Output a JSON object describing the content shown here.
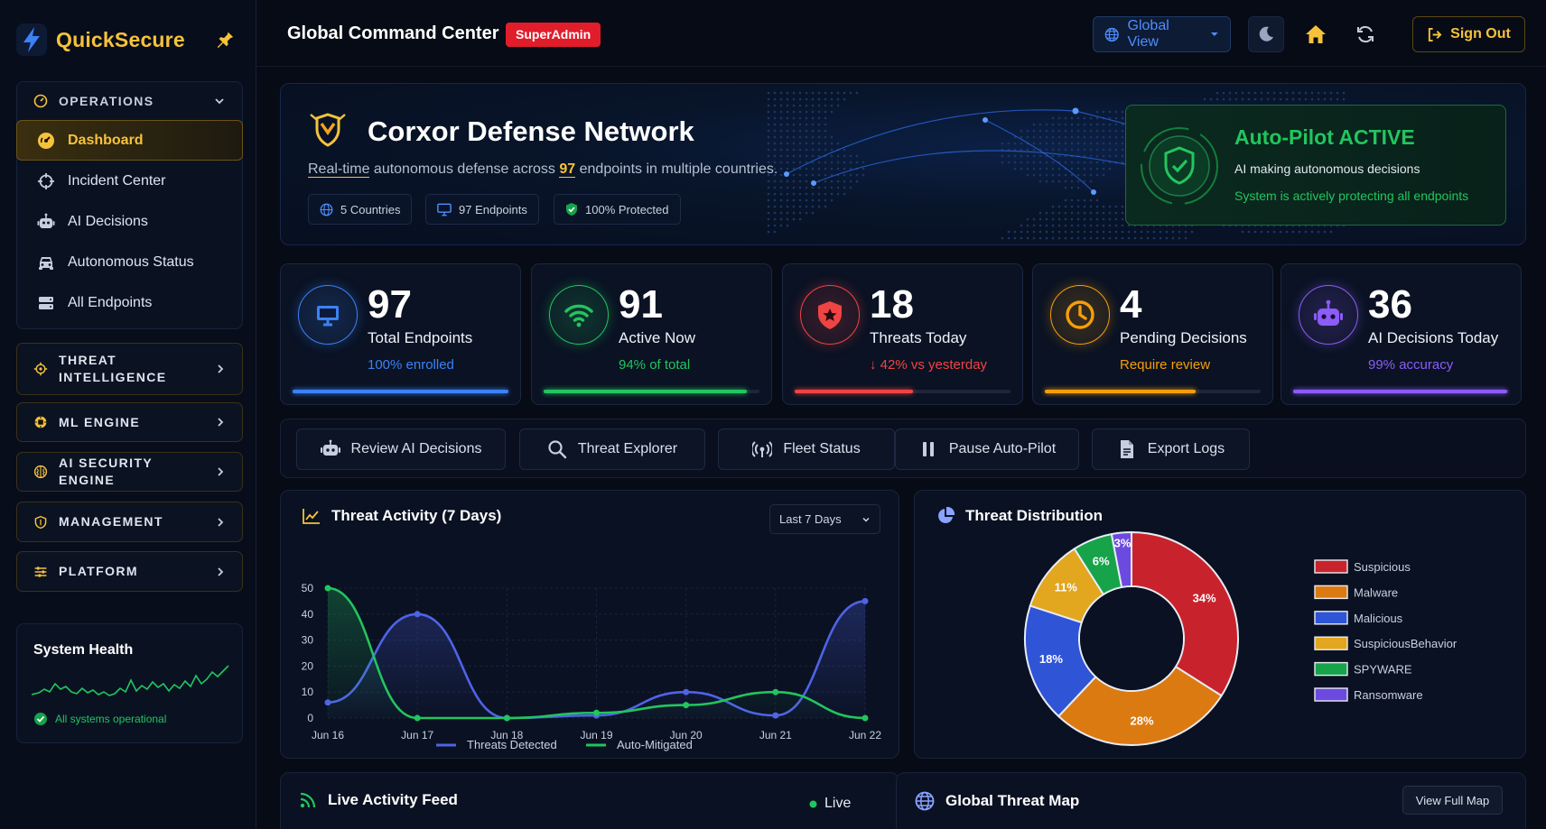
{
  "brand": {
    "name": "QuickSecure"
  },
  "sidebar": {
    "operations_label": "OPERATIONS",
    "items": [
      {
        "label": "Dashboard",
        "icon": "dashboard-gauge-icon",
        "active": true
      },
      {
        "label": "Incident Center",
        "icon": "crosshair-icon"
      },
      {
        "label": "AI Decisions",
        "icon": "robot-icon"
      },
      {
        "label": "Autonomous Status",
        "icon": "car-icon"
      },
      {
        "label": "All Endpoints",
        "icon": "server-icon"
      }
    ],
    "sections": [
      {
        "label1": "THREAT",
        "label2": "INTELLIGENCE",
        "icon": "target-icon"
      },
      {
        "label1": "ML ENGINE",
        "icon": "chip-icon"
      },
      {
        "label1": "AI SECURITY ENGINE",
        "icon": "brain-icon"
      },
      {
        "label1": "MANAGEMENT",
        "icon": "shield-icon"
      },
      {
        "label1": "PLATFORM",
        "icon": "sliders-icon"
      }
    ],
    "health": {
      "title": "System Health",
      "status": "All systems operational"
    }
  },
  "header": {
    "title": "Global Command Center",
    "role_badge": "SuperAdmin",
    "view_select": "Global View",
    "sign_out": "Sign Out"
  },
  "hero": {
    "title": "Corxor Defense Network",
    "subtitle_pre": "Real-time",
    "subtitle_mid": " autonomous defense across ",
    "subtitle_count": "97",
    "subtitle_post": " endpoints in multiple countries.",
    "chips": [
      "5 Countries",
      "97 Endpoints",
      "100% Protected"
    ],
    "autopilot": {
      "title": "Auto-Pilot ACTIVE",
      "line1": "AI making autonomous decisions",
      "line2": "System is actively protecting all endpoints"
    }
  },
  "stats": [
    {
      "value": "97",
      "label": "Total Endpoints",
      "sub": "100% enrolled",
      "color": "#3b82f6",
      "fill": 1.0,
      "icon": "monitor-icon"
    },
    {
      "value": "91",
      "label": "Active Now",
      "sub": "94% of total",
      "color": "#22c55e",
      "fill": 0.94,
      "icon": "wifi-icon"
    },
    {
      "value": "18",
      "label": "Threats Today",
      "sub": "↓ 42% vs yesterday",
      "color": "#ef4444",
      "fill": 0.55,
      "icon": "shield-star-icon"
    },
    {
      "value": "4",
      "label": "Pending Decisions",
      "sub": "Require review",
      "color": "#f59e0b",
      "fill": 0.7,
      "icon": "clock-icon"
    },
    {
      "value": "36",
      "label": "AI Decisions Today",
      "sub": "99% accuracy",
      "color": "#8b5cf6",
      "fill": 0.99,
      "icon": "robot-icon"
    }
  ],
  "actions": [
    {
      "label": "Review AI Decisions",
      "icon": "robot-icon"
    },
    {
      "label": "Threat Explorer",
      "icon": "search-icon"
    },
    {
      "label": "Fleet Status",
      "icon": "broadcast-icon"
    },
    {
      "label": "Pause Auto-Pilot",
      "icon": "pause-icon"
    },
    {
      "label": "Export Logs",
      "icon": "file-icon"
    }
  ],
  "threat_activity": {
    "title": "Threat Activity (7 Days)",
    "range_select": "Last 7 Days"
  },
  "threat_distribution": {
    "title": "Threat Distribution"
  },
  "live_feed": {
    "title": "Live Activity Feed",
    "status": "Live"
  },
  "threat_map": {
    "title": "Global Threat Map",
    "button": "View Full Map"
  },
  "chart_data": [
    {
      "type": "line",
      "title": "Threat Activity (7 Days)",
      "categories": [
        "Jun 16",
        "Jun 17",
        "Jun 18",
        "Jun 19",
        "Jun 20",
        "Jun 21",
        "Jun 22"
      ],
      "ylim": [
        0,
        50
      ],
      "yticks": [
        0,
        10,
        20,
        30,
        40,
        50
      ],
      "series": [
        {
          "name": "Threats Detected",
          "color": "#4f63e8",
          "values": [
            6,
            40,
            0,
            1,
            10,
            1,
            45
          ]
        },
        {
          "name": "Auto-Mitigated",
          "color": "#22c55e",
          "values": [
            50,
            0,
            0,
            2,
            5,
            10,
            0
          ]
        }
      ],
      "legend": "bottom"
    },
    {
      "type": "pie",
      "title": "Threat Distribution",
      "legend": "right",
      "slices": [
        {
          "name": "Suspicious",
          "value": 34,
          "label": "34%",
          "color": "#c8232c"
        },
        {
          "name": "Malware",
          "value": 28,
          "label": "28%",
          "color": "#dc7a12"
        },
        {
          "name": "Malicious",
          "value": 18,
          "label": "18%",
          "color": "#2f54d6"
        },
        {
          "name": "SuspiciousBehavior",
          "value": 11,
          "label": "11%",
          "color": "#e2a61f"
        },
        {
          "name": "SPYWARE",
          "value": 6,
          "label": "6%",
          "color": "#16a34a"
        },
        {
          "name": "Ransomware",
          "value": 3,
          "label": "3%",
          "color": "#6d4adf"
        }
      ]
    }
  ]
}
